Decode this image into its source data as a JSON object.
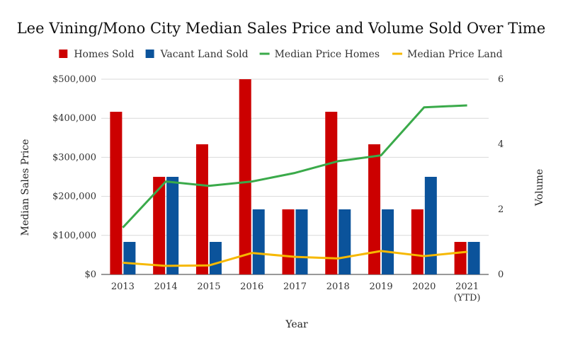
{
  "chart_data": {
    "type": "bar",
    "title": "Lee Vining/Mono City Median Sales Price and Volume Sold Over Time",
    "xlabel": "Year",
    "ylabel": "Median Sales Price",
    "y2label": "Volume",
    "categories": [
      [
        "2013"
      ],
      [
        "2014"
      ],
      [
        "2015"
      ],
      [
        "2016"
      ],
      [
        "2017"
      ],
      [
        "2018"
      ],
      [
        "2019"
      ],
      [
        "2020"
      ],
      [
        "2021",
        "(YTD)"
      ]
    ],
    "ylim": [
      0,
      500000
    ],
    "y2lim": [
      0,
      6
    ],
    "yticks": [
      "$0",
      "$100,000",
      "$200,000",
      "$300,000",
      "$400,000",
      "$500,000"
    ],
    "y2ticks": [
      "0",
      "2",
      "4",
      "6"
    ],
    "legend_position": "top",
    "series": [
      {
        "name": "Homes Sold",
        "kind": "bar",
        "axis": "right",
        "color": "#cc0000",
        "values": [
          5,
          3,
          4,
          6,
          2,
          5,
          4,
          2,
          1
        ]
      },
      {
        "name": "Vacant Land Sold",
        "kind": "bar",
        "axis": "right",
        "color": "#0b539b",
        "values": [
          1,
          3,
          1,
          2,
          2,
          2,
          2,
          3,
          1
        ]
      },
      {
        "name": "Median Price Homes",
        "kind": "line",
        "axis": "left",
        "color": "#3aaa4a",
        "values": [
          120000,
          238000,
          227000,
          238000,
          260000,
          290000,
          305000,
          428000,
          433000
        ]
      },
      {
        "name": "Median Price Land",
        "kind": "line",
        "axis": "left",
        "color": "#f6b800",
        "values": [
          30000,
          22000,
          23000,
          55000,
          45000,
          41000,
          60000,
          47000,
          58000
        ]
      }
    ]
  }
}
